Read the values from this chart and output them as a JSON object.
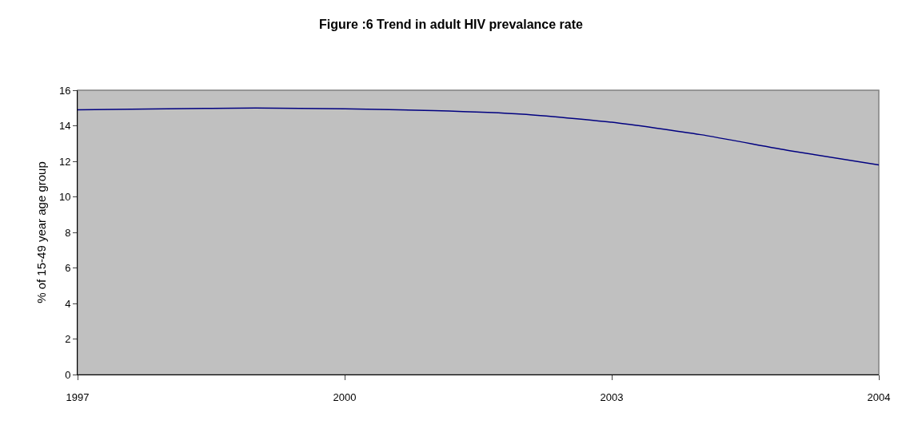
{
  "chart_data": {
    "type": "line",
    "title": "Figure :6 Trend in adult HIV prevalance rate",
    "ylabel": "% of 15-49 year age group",
    "categories": [
      "1997",
      null,
      null,
      "2000",
      null,
      null,
      "2003",
      null,
      null,
      "2004"
    ],
    "series": [
      {
        "color": "#000080",
        "values": [
          14.9,
          14.95,
          15.0,
          14.95,
          14.85,
          14.65,
          14.2,
          13.5,
          12.6,
          11.8
        ]
      }
    ],
    "ylim": [
      0,
      16
    ],
    "yticks": [
      0,
      2,
      4,
      6,
      8,
      10,
      12,
      14,
      16
    ],
    "grid": false,
    "marker": "none",
    "line_style": "solid"
  }
}
